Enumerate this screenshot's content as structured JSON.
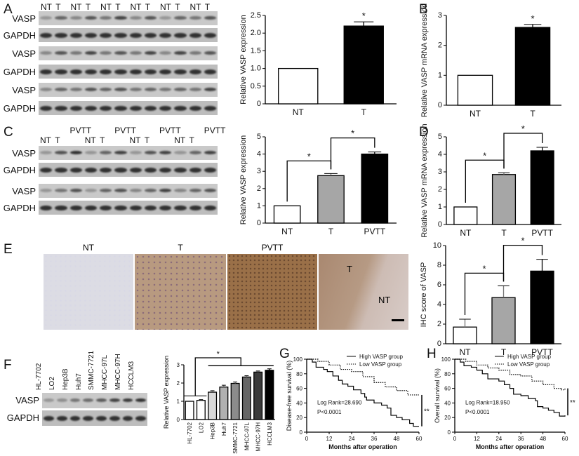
{
  "panel_labels": [
    "A",
    "B",
    "C",
    "D",
    "E",
    "F",
    "G",
    "H"
  ],
  "blots": {
    "A": {
      "lanes": [
        "NT",
        "T",
        "NT",
        "T",
        "NT",
        "T",
        "NT",
        "T",
        "NT",
        "T",
        "NT",
        "T"
      ],
      "rows": [
        "VASP",
        "GAPDH",
        "VASP",
        "GAPDH",
        "VASP",
        "GAPDH"
      ],
      "vasp_intensity": [
        [
          0.3,
          0.6,
          0.4,
          0.7,
          0.5,
          0.8,
          0.4,
          0.7,
          0.3,
          0.6,
          0.5,
          0.7
        ],
        [
          0.4,
          0.7,
          0.5,
          0.8,
          0.5,
          0.7,
          0.5,
          0.8,
          0.4,
          0.8,
          0.5,
          0.7
        ],
        [
          0.4,
          0.6,
          0.5,
          0.7,
          0.6,
          0.7,
          0.5,
          0.6,
          0.5,
          0.6,
          0.5,
          0.8
        ]
      ]
    },
    "C": {
      "lanes": [
        "NT",
        "T",
        "PVTT",
        "NT",
        "T",
        "PVTT",
        "NT",
        "T",
        "PVTT",
        "NT",
        "T",
        "PVTT"
      ],
      "rows": [
        "VASP",
        "GAPDH",
        "VASP",
        "GAPDH"
      ],
      "vasp_intensity": [
        [
          0.3,
          0.7,
          0.9,
          0.3,
          0.6,
          0.8,
          0.3,
          0.7,
          0.8,
          0.3,
          0.6,
          0.8
        ],
        [
          0.3,
          0.5,
          0.7,
          0.3,
          0.6,
          0.7,
          0.4,
          0.6,
          0.8,
          0.4,
          0.6,
          0.7
        ]
      ]
    },
    "F": {
      "lanes": [
        "HL-7702",
        "LO2",
        "Hep3B",
        "Huh7",
        "SMMC-7721",
        "MHCC-97L",
        "MHCC-97H",
        "HCCLM3"
      ],
      "rows": [
        "VASP",
        "GAPDH"
      ],
      "vasp_intensity": [
        [
          0.3,
          0.35,
          0.5,
          0.55,
          0.65,
          0.8,
          0.85,
          0.9
        ]
      ]
    }
  },
  "ihc": {
    "labels": [
      "NT",
      "T",
      "PVTT"
    ],
    "overlay_labels": [
      "T",
      "NT"
    ]
  },
  "chart_data": [
    {
      "id": "A",
      "type": "bar",
      "categories": [
        "NT",
        "T"
      ],
      "values": [
        1,
        2.2
      ],
      "errors": [
        0,
        0.12
      ],
      "colors": [
        "#ffffff",
        "#000000"
      ],
      "ylabel": "Relative VASP expression",
      "ylim": [
        0,
        2.5
      ],
      "yticks": [
        "0",
        "0.5",
        "1.0",
        "1.5",
        "2.0",
        "2.5"
      ],
      "sig": [
        {
          "from": 1,
          "to": 1,
          "label": "*"
        }
      ]
    },
    {
      "id": "B",
      "type": "bar",
      "categories": [
        "NT",
        "T"
      ],
      "values": [
        1,
        2.6
      ],
      "errors": [
        0,
        0.1
      ],
      "colors": [
        "#ffffff",
        "#000000"
      ],
      "ylabel": "Relative VASP mRNA expression",
      "ylim": [
        0,
        3
      ],
      "yticks": [
        "0",
        "1",
        "2",
        "3"
      ],
      "sig": [
        {
          "from": 1,
          "to": 1,
          "label": "*"
        }
      ]
    },
    {
      "id": "C",
      "type": "bar",
      "categories": [
        "NT",
        "T",
        "PVTT"
      ],
      "values": [
        1,
        2.75,
        4
      ],
      "errors": [
        0,
        0.12,
        0.12
      ],
      "colors": [
        "#ffffff",
        "#a6a6a6",
        "#000000"
      ],
      "ylabel": "Relative VASP expression",
      "ylim": [
        0,
        5
      ],
      "yticks": [
        "0",
        "1",
        "2",
        "3",
        "4",
        "5"
      ],
      "sig": [
        {
          "from": 0,
          "to": 1,
          "label": "*"
        },
        {
          "from": 1,
          "to": 2,
          "label": "*"
        }
      ]
    },
    {
      "id": "D",
      "type": "bar",
      "categories": [
        "NT",
        "T",
        "PVTT"
      ],
      "values": [
        1,
        2.85,
        4.2
      ],
      "errors": [
        0,
        0.1,
        0.2
      ],
      "colors": [
        "#ffffff",
        "#a6a6a6",
        "#000000"
      ],
      "ylabel": "Relative VASP mRNA expression",
      "ylim": [
        0,
        5
      ],
      "yticks": [
        "0",
        "1",
        "2",
        "3",
        "4",
        "5"
      ],
      "sig": [
        {
          "from": 0,
          "to": 1,
          "label": "*"
        },
        {
          "from": 1,
          "to": 2,
          "label": "*"
        }
      ]
    },
    {
      "id": "E",
      "type": "bar",
      "categories": [
        "NT",
        "T",
        "PVTT"
      ],
      "values": [
        1.7,
        4.7,
        7.4
      ],
      "errors": [
        0.8,
        1.2,
        1.2
      ],
      "colors": [
        "#ffffff",
        "#a6a6a6",
        "#000000"
      ],
      "ylabel": "IHC score of VASP",
      "ylim": [
        0,
        10
      ],
      "yticks": [
        "0",
        "2",
        "4",
        "6",
        "8",
        "10"
      ],
      "sig": [
        {
          "from": 0,
          "to": 1,
          "label": "*"
        },
        {
          "from": 1,
          "to": 2,
          "label": "*"
        }
      ]
    },
    {
      "id": "F",
      "type": "bar",
      "categories": [
        "HL-7702",
        "LO2",
        "Hep3B",
        "Huh7",
        "SMMC-7721",
        "MHCC-97L",
        "MHCC-97H",
        "HCCLM3"
      ],
      "values": [
        1,
        1.05,
        1.5,
        1.78,
        1.98,
        2.33,
        2.6,
        2.7
      ],
      "errors": [
        0,
        0.04,
        0.08,
        0.1,
        0.08,
        0.07,
        0.06,
        0.08
      ],
      "colors": [
        "#ffffff",
        "#ffffff",
        "#d9d9d9",
        "#b0b0b0",
        "#8c8c8c",
        "#666666",
        "#3a3a3a",
        "#000000"
      ],
      "ylabel": "Relative VASP expression",
      "ylim": [
        0,
        3
      ],
      "yticks": [
        "0",
        "1",
        "2",
        "3"
      ],
      "sig": [
        {
          "from": 0,
          "to": 7,
          "label": "*"
        }
      ]
    },
    {
      "id": "G",
      "type": "line",
      "title": "",
      "xlabel": "Months after operation",
      "ylabel": "Disease-free survival (%)",
      "xlim": [
        0,
        60
      ],
      "ylim": [
        0,
        100
      ],
      "xticks": [
        "0",
        "12",
        "24",
        "36",
        "48",
        "60"
      ],
      "yticks": [
        "0",
        "20",
        "40",
        "60",
        "80",
        "100"
      ],
      "series": [
        {
          "name": "High VASP group",
          "style": "solid",
          "points": [
            [
              0,
              100
            ],
            [
              3,
              96
            ],
            [
              5,
              89
            ],
            [
              9,
              86
            ],
            [
              11,
              83
            ],
            [
              14,
              77
            ],
            [
              17,
              71
            ],
            [
              19,
              66
            ],
            [
              22,
              63
            ],
            [
              25,
              58
            ],
            [
              29,
              53
            ],
            [
              31,
              48
            ],
            [
              32,
              44
            ],
            [
              36,
              40
            ],
            [
              40,
              37
            ],
            [
              43,
              33
            ],
            [
              45,
              23
            ],
            [
              48,
              20
            ],
            [
              51,
              17
            ],
            [
              55,
              12
            ],
            [
              57,
              8
            ],
            [
              60,
              8
            ]
          ]
        },
        {
          "name": "Low VASP group",
          "style": "dotted",
          "points": [
            [
              0,
              100
            ],
            [
              6,
              97
            ],
            [
              12,
              92
            ],
            [
              18,
              86
            ],
            [
              24,
              83
            ],
            [
              30,
              76
            ],
            [
              36,
              68
            ],
            [
              42,
              62
            ],
            [
              48,
              57
            ],
            [
              54,
              51
            ],
            [
              60,
              51
            ]
          ]
        }
      ],
      "annotations": [
        "Log Rank=28.690",
        "P<0.0001",
        "**"
      ]
    },
    {
      "id": "H",
      "type": "line",
      "xlabel": "Months after operation",
      "ylabel": "Overall survival (%)",
      "xlim": [
        0,
        60
      ],
      "ylim": [
        0,
        100
      ],
      "xticks": [
        "0",
        "12",
        "24",
        "36",
        "48",
        "60"
      ],
      "yticks": [
        "0",
        "20",
        "40",
        "60",
        "80",
        "100"
      ],
      "series": [
        {
          "name": "High VASP group",
          "style": "solid",
          "points": [
            [
              0,
              100
            ],
            [
              3,
              96
            ],
            [
              5,
              91
            ],
            [
              9,
              89
            ],
            [
              12,
              85
            ],
            [
              15,
              80
            ],
            [
              18,
              73
            ],
            [
              24,
              70
            ],
            [
              27,
              65
            ],
            [
              30,
              60
            ],
            [
              32,
              52
            ],
            [
              36,
              50
            ],
            [
              40,
              46
            ],
            [
              44,
              43
            ],
            [
              45,
              35
            ],
            [
              48,
              33
            ],
            [
              51,
              30
            ],
            [
              54,
              27
            ],
            [
              57,
              22
            ],
            [
              60,
              23
            ]
          ]
        },
        {
          "name": "Low VASP group",
          "style": "dotted",
          "points": [
            [
              0,
              100
            ],
            [
              6,
              97
            ],
            [
              12,
              92
            ],
            [
              18,
              88
            ],
            [
              24,
              85
            ],
            [
              30,
              79
            ],
            [
              36,
              77
            ],
            [
              42,
              70
            ],
            [
              48,
              65
            ],
            [
              54,
              60
            ],
            [
              58,
              58
            ],
            [
              60,
              60
            ]
          ]
        }
      ],
      "annotations": [
        "Log Rank=18.950",
        "P<0.0001",
        "**"
      ]
    }
  ]
}
